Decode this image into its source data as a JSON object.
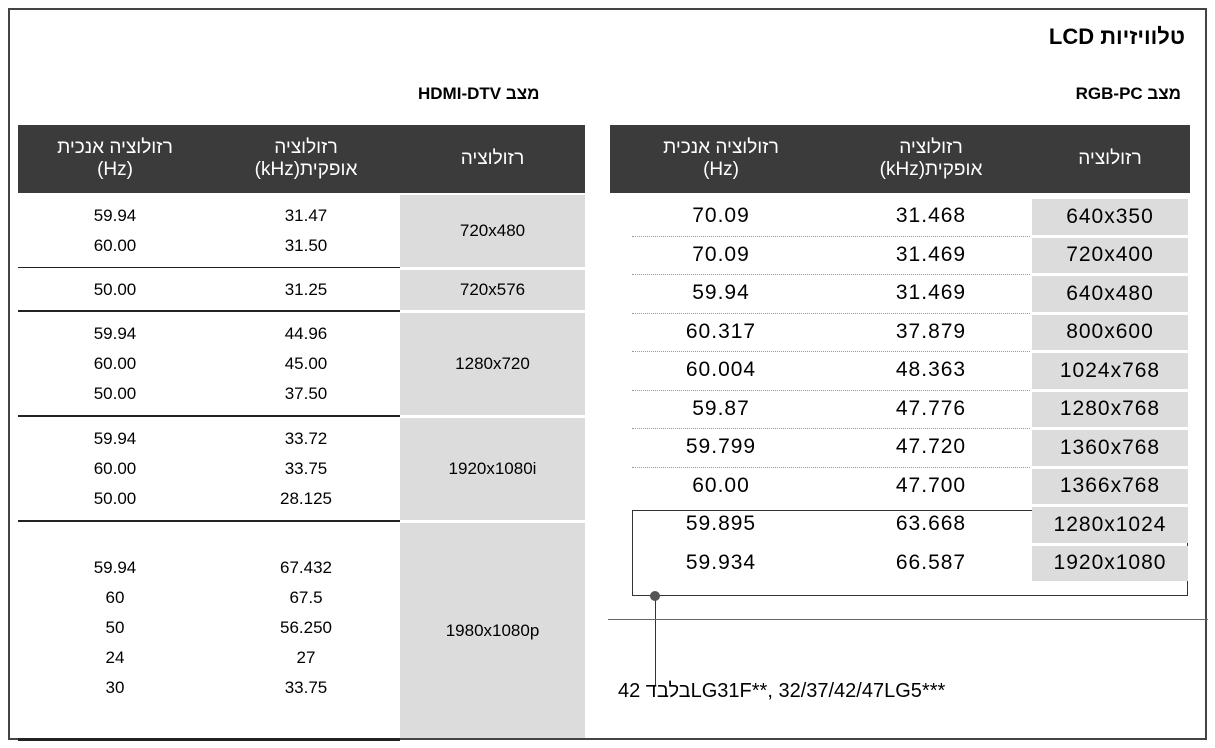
{
  "title": "טלוויזיות LCD",
  "rgb_pc": {
    "label": "מצב RGB-PC",
    "headers": [
      "רזולוציה",
      "רזולוציה\nאופקית(kHz)",
      "רזולוציה אנכית\n(Hz)"
    ],
    "rows": [
      [
        "640x350",
        "31.468",
        "70.09"
      ],
      [
        "720x400",
        "31.469",
        "70.09"
      ],
      [
        "640x480",
        "31.469",
        "59.94"
      ],
      [
        "800x600",
        "37.879",
        "60.317"
      ],
      [
        "1024x768",
        "48.363",
        "60.004"
      ],
      [
        "1280x768",
        "47.776",
        "59.87"
      ],
      [
        "1360x768",
        "47.720",
        "59.799"
      ],
      [
        "1366x768",
        "47.700",
        "60.00"
      ],
      [
        "1280x1024",
        "63.668",
        "59.895"
      ],
      [
        "1920x1080",
        "66.587",
        "59.934"
      ]
    ]
  },
  "hdmi_dtv": {
    "label": "מצב HDMI-DTV",
    "headers": [
      "רזולוציה",
      "רזולוציה\nאופקית(kHz)",
      "רזולוציה אנכית\n(Hz)"
    ],
    "groups": [
      {
        "resolution": "720x480",
        "rows": [
          [
            "31.47",
            "59.94"
          ],
          [
            "31.50",
            "60.00"
          ]
        ]
      },
      {
        "resolution": "720x576",
        "rows": [
          [
            "31.25",
            "50.00"
          ]
        ]
      },
      {
        "resolution": "1280x720",
        "rows": [
          [
            "44.96",
            "59.94"
          ],
          [
            "45.00",
            "60.00"
          ],
          [
            "37.50",
            "50.00"
          ]
        ]
      },
      {
        "resolution": "1920x1080i",
        "rows": [
          [
            "33.72",
            "59.94"
          ],
          [
            "33.75",
            "60.00"
          ],
          [
            "28.125",
            "50.00"
          ]
        ]
      },
      {
        "resolution": "1980x1080p",
        "rows": [
          [
            "67.432",
            "59.94"
          ],
          [
            "67.5",
            "60"
          ],
          [
            "56.250",
            "50"
          ],
          [
            "27",
            "24"
          ],
          [
            "33.75",
            "30"
          ]
        ]
      }
    ]
  },
  "footnote": "בלבד 42LG31F**, 32/37/42/47LG5***"
}
